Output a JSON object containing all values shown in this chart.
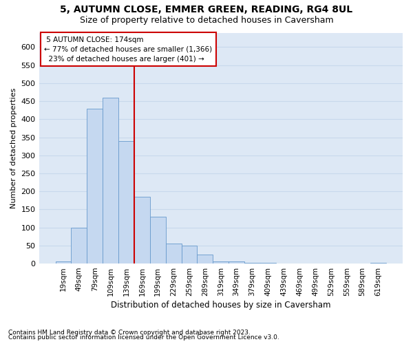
{
  "title": "5, AUTUMN CLOSE, EMMER GREEN, READING, RG4 8UL",
  "subtitle": "Size of property relative to detached houses in Caversham",
  "xlabel": "Distribution of detached houses by size in Caversham",
  "ylabel": "Number of detached properties",
  "property_label": "5 AUTUMN CLOSE: 174sqm",
  "pct_smaller": 77,
  "pct_larger": 23,
  "count_smaller": 1366,
  "count_larger": 401,
  "bin_labels": [
    "19sqm",
    "49sqm",
    "79sqm",
    "109sqm",
    "139sqm",
    "169sqm",
    "199sqm",
    "229sqm",
    "259sqm",
    "289sqm",
    "319sqm",
    "349sqm",
    "379sqm",
    "409sqm",
    "439sqm",
    "469sqm",
    "499sqm",
    "529sqm",
    "559sqm",
    "589sqm",
    "619sqm"
  ],
  "bar_values": [
    5,
    100,
    430,
    460,
    340,
    185,
    130,
    55,
    50,
    25,
    5,
    5,
    2,
    2,
    1,
    1,
    0,
    0,
    0,
    0,
    2
  ],
  "bar_color": "#c5d8f0",
  "bar_edge_color": "#6699cc",
  "vline_color": "#cc0000",
  "box_color": "#cc0000",
  "ylim": [
    0,
    640
  ],
  "yticks": [
    0,
    50,
    100,
    150,
    200,
    250,
    300,
    350,
    400,
    450,
    500,
    550,
    600
  ],
  "footnote1": "Contains HM Land Registry data © Crown copyright and database right 2023.",
  "footnote2": "Contains public sector information licensed under the Open Government Licence v3.0.",
  "bg_color": "#dde8f5",
  "grid_color": "#c8d8ec"
}
